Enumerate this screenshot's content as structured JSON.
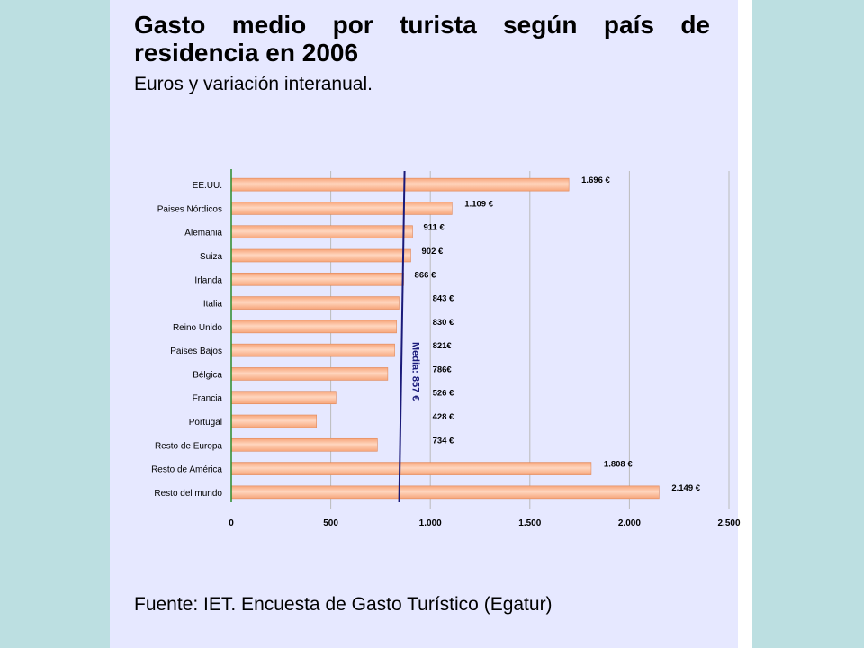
{
  "title": "Gasto medio por turista según país de residencia en 2006",
  "subtitle": "Euros y variación interanual.",
  "source": "Fuente: IET. Encuesta de Gasto Turístico (Egatur)",
  "colors": {
    "bar": "#f7a57a",
    "bar_highlight": "#ffd6bf",
    "average_line": "#1a1a7a",
    "axis": "#2a8a2a",
    "grid": "#bbbbbb",
    "slide_bg": "#e6e8ff",
    "page_bg": "#bcdfe1"
  },
  "chart_data": {
    "type": "bar",
    "orientation": "horizontal",
    "title": "",
    "categories": [
      "EE.UU.",
      "Paises Nórdicos",
      "Alemania",
      "Suiza",
      "Irlanda",
      "Italia",
      "Reino Unido",
      "Paises Bajos",
      "Bélgica",
      "Francia",
      "Portugal",
      "Resto de Europa",
      "Resto de América",
      "Resto del mundo"
    ],
    "values": [
      1696,
      1109,
      911,
      902,
      866,
      843,
      830,
      821,
      786,
      526,
      428,
      734,
      1808,
      2149
    ],
    "data_labels": [
      "1.696 €",
      "1.109 €",
      "911 €",
      "902 €",
      "866 €",
      "843 €",
      "830 €",
      "821€",
      "786€",
      "526 €",
      "428 €",
      "734 €",
      "1.808 €",
      "2.149 €"
    ],
    "xlim": [
      0,
      2500
    ],
    "xticks": [
      0,
      500,
      1000,
      1500,
      2000,
      2500
    ],
    "xtick_labels": [
      "0",
      "500",
      "1.000",
      "1.500",
      "2.000",
      "2.500"
    ],
    "grid": true,
    "reference_line": {
      "value": 857,
      "label": "Media: 857 €"
    }
  }
}
